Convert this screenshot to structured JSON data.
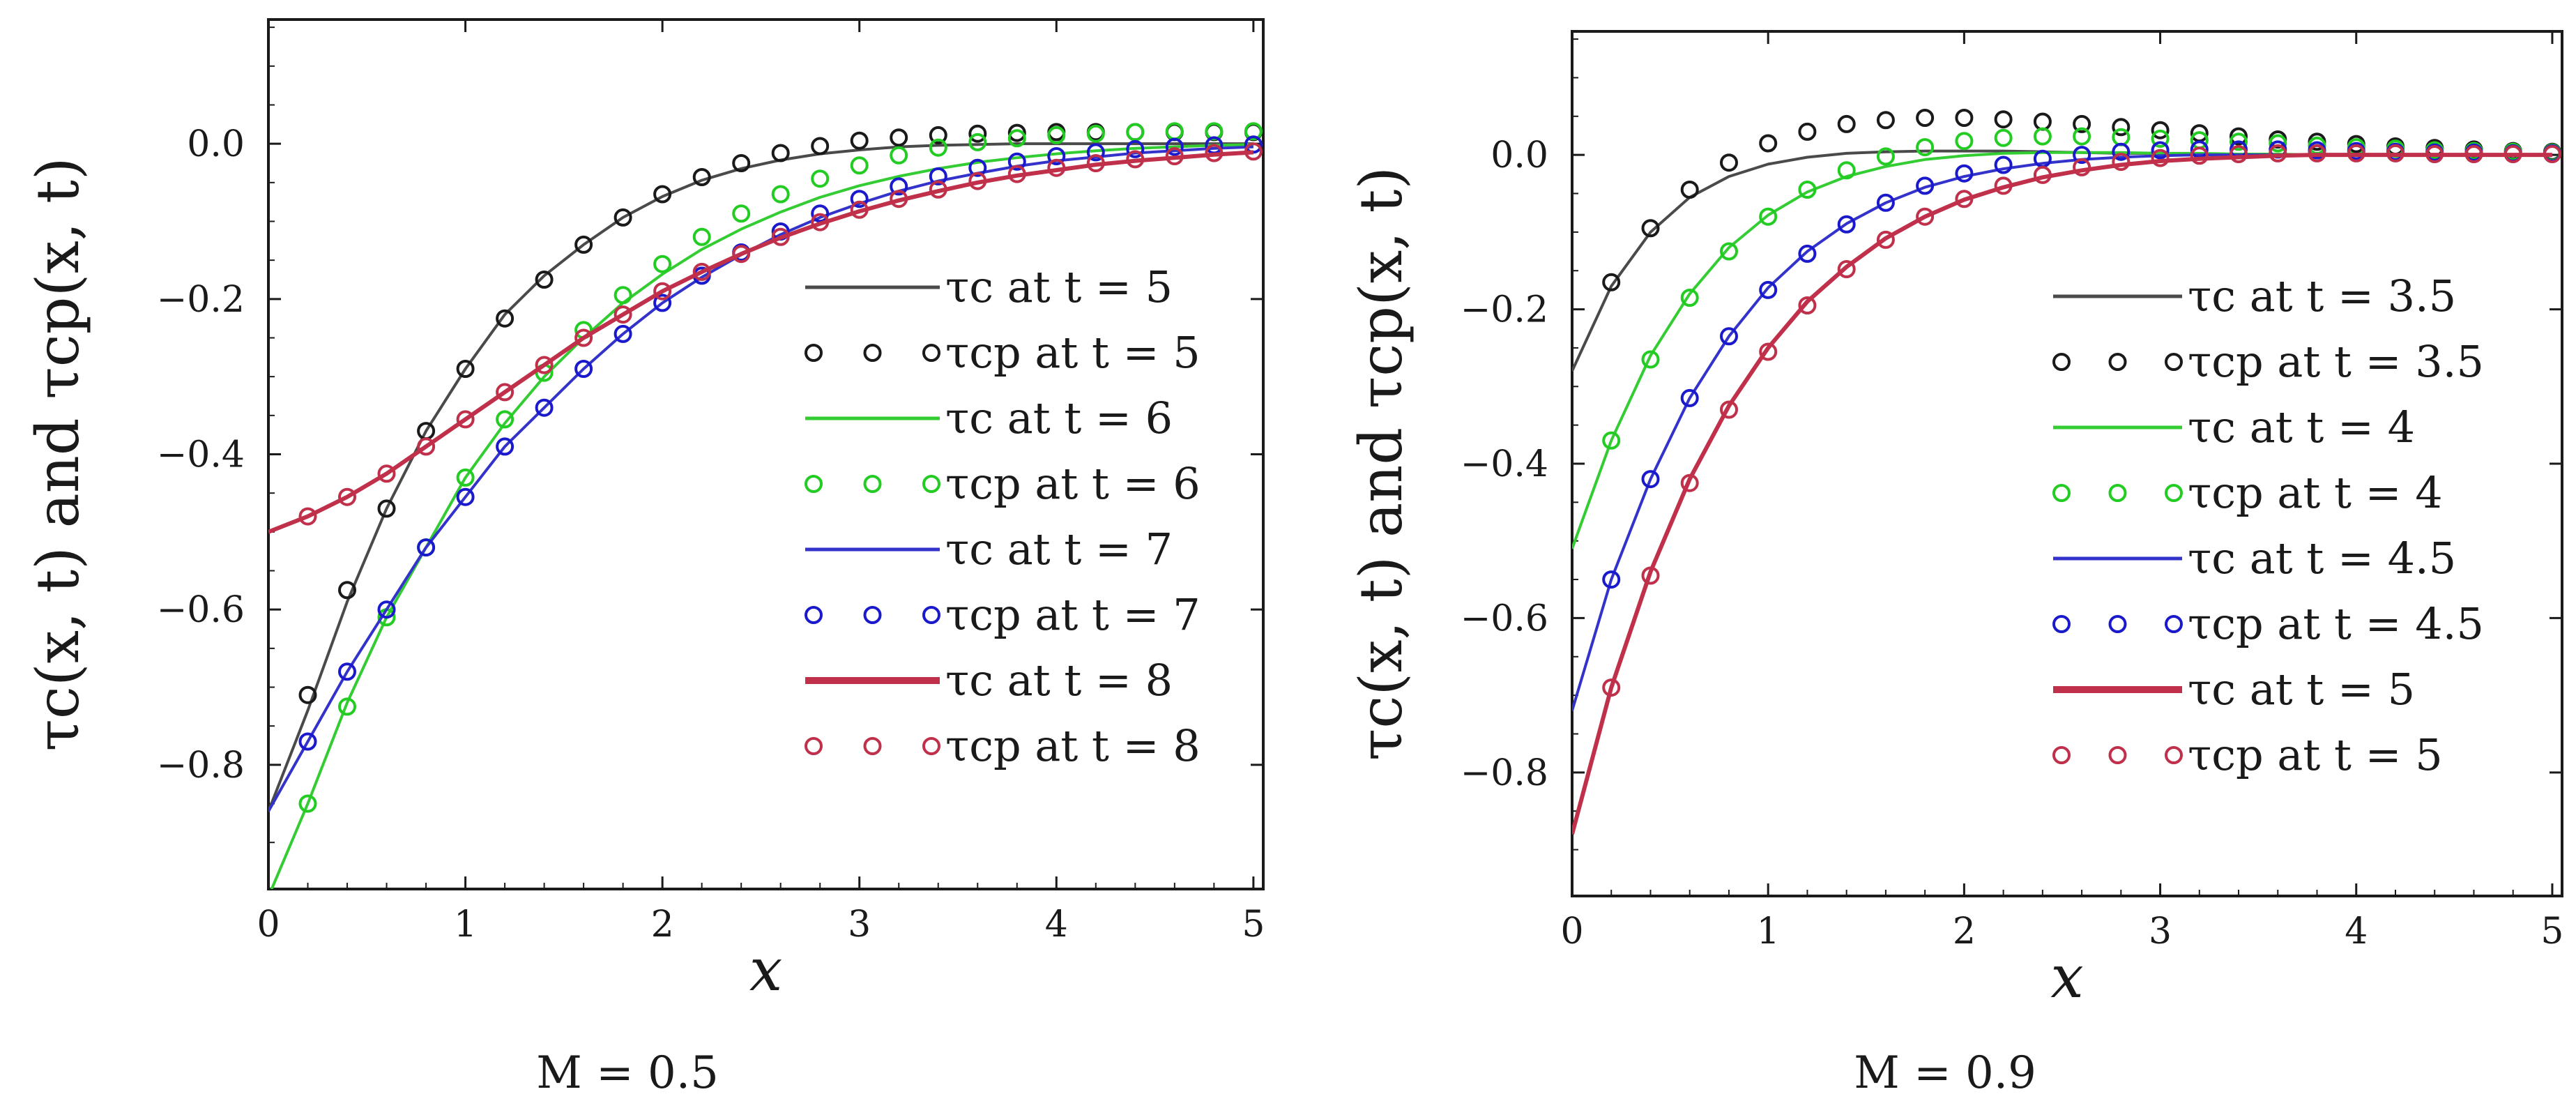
{
  "chart_data": [
    {
      "type": "line",
      "caption": "M = 0.5",
      "xlabel": "x",
      "ylabel": "τc(x, t) and τcp(x, t)",
      "xlim": [
        0,
        5.05
      ],
      "ylim": [
        -0.96,
        0.16
      ],
      "xticks": [
        0,
        1,
        2,
        3,
        4,
        5
      ],
      "yticks": [
        0.0,
        -0.2,
        -0.4,
        -0.6,
        -0.8
      ],
      "ytick_labels": [
        "0.0",
        "−0.2",
        "−0.4",
        "−0.6",
        "−0.8"
      ],
      "legend_position": "right",
      "series": [
        {
          "name": "τc at t = 5",
          "legend": "τc at t = 5",
          "style": "line",
          "color": "#4a4a4a",
          "x": [
            0,
            0.2,
            0.4,
            0.6,
            0.8,
            1.0,
            1.2,
            1.4,
            1.6,
            1.8,
            2.0,
            2.2,
            2.4,
            2.6,
            2.8,
            3.0,
            3.2,
            3.4,
            3.6,
            3.8,
            4.0,
            4.2,
            4.4,
            4.6,
            4.8,
            5.0
          ],
          "y": [
            -0.86,
            -0.73,
            -0.59,
            -0.47,
            -0.37,
            -0.29,
            -0.22,
            -0.17,
            -0.13,
            -0.095,
            -0.068,
            -0.047,
            -0.032,
            -0.021,
            -0.013,
            -0.008,
            -0.004,
            -0.002,
            -0.001,
            0,
            0,
            0,
            0,
            0,
            0,
            0
          ]
        },
        {
          "name": "τcp at t = 5",
          "legend": "τcp at t = 5",
          "style": "markers",
          "color": "#1a1a1a",
          "x": [
            0.2,
            0.4,
            0.6,
            0.8,
            1.0,
            1.2,
            1.4,
            1.6,
            1.8,
            2.0,
            2.2,
            2.4,
            2.6,
            2.8,
            3.0,
            3.2,
            3.4,
            3.6,
            3.8,
            4.0,
            4.2,
            4.4,
            4.6,
            4.8,
            5.0
          ],
          "y": [
            -0.71,
            -0.575,
            -0.47,
            -0.37,
            -0.29,
            -0.225,
            -0.175,
            -0.13,
            -0.095,
            -0.065,
            -0.043,
            -0.025,
            -0.012,
            -0.003,
            0.004,
            0.008,
            0.011,
            0.013,
            0.014,
            0.015,
            0.015,
            0.015,
            0.015,
            0.015,
            0.015
          ]
        },
        {
          "name": "τc at t = 6",
          "legend": "τc at t = 6",
          "style": "line",
          "color": "#33cc33",
          "x": [
            0,
            0.2,
            0.4,
            0.6,
            0.8,
            1.0,
            1.2,
            1.4,
            1.6,
            1.8,
            2.0,
            2.2,
            2.4,
            2.6,
            2.8,
            3.0,
            3.2,
            3.4,
            3.6,
            3.8,
            4.0,
            4.2,
            4.4,
            4.6,
            4.8,
            5.0
          ],
          "y": [
            -0.97,
            -0.85,
            -0.72,
            -0.61,
            -0.52,
            -0.43,
            -0.36,
            -0.3,
            -0.25,
            -0.205,
            -0.168,
            -0.136,
            -0.11,
            -0.088,
            -0.069,
            -0.054,
            -0.042,
            -0.032,
            -0.024,
            -0.018,
            -0.013,
            -0.009,
            -0.006,
            -0.004,
            -0.002,
            -0.001
          ]
        },
        {
          "name": "τcp at t = 6",
          "legend": "τcp at t = 6",
          "style": "markers",
          "color": "#22cc22",
          "x": [
            0.2,
            0.4,
            0.6,
            0.8,
            1.0,
            1.2,
            1.4,
            1.6,
            1.8,
            2.0,
            2.2,
            2.4,
            2.6,
            2.8,
            3.0,
            3.2,
            3.4,
            3.6,
            3.8,
            4.0,
            4.2,
            4.4,
            4.6,
            4.8,
            5.0
          ],
          "y": [
            -0.85,
            -0.725,
            -0.61,
            -0.52,
            -0.43,
            -0.355,
            -0.295,
            -0.24,
            -0.195,
            -0.155,
            -0.12,
            -0.09,
            -0.065,
            -0.045,
            -0.028,
            -0.015,
            -0.005,
            0.002,
            0.007,
            0.011,
            0.013,
            0.015,
            0.016,
            0.016,
            0.016
          ]
        },
        {
          "name": "τc at t = 7",
          "legend": "τc at t = 7",
          "style": "line",
          "color": "#3333cc",
          "x": [
            0,
            0.2,
            0.4,
            0.6,
            0.8,
            1.0,
            1.2,
            1.4,
            1.6,
            1.8,
            2.0,
            2.2,
            2.4,
            2.6,
            2.8,
            3.0,
            3.2,
            3.4,
            3.6,
            3.8,
            4.0,
            4.2,
            4.4,
            4.6,
            4.8,
            5.0
          ],
          "y": [
            -0.86,
            -0.77,
            -0.68,
            -0.6,
            -0.52,
            -0.455,
            -0.39,
            -0.34,
            -0.29,
            -0.245,
            -0.205,
            -0.172,
            -0.143,
            -0.117,
            -0.095,
            -0.077,
            -0.061,
            -0.048,
            -0.038,
            -0.029,
            -0.022,
            -0.017,
            -0.012,
            -0.009,
            -0.006,
            -0.004
          ]
        },
        {
          "name": "τcp at t = 7",
          "legend": "τcp at t = 7",
          "style": "markers",
          "color": "#1a1acc",
          "x": [
            0.2,
            0.4,
            0.6,
            0.8,
            1.0,
            1.2,
            1.4,
            1.6,
            1.8,
            2.0,
            2.2,
            2.4,
            2.6,
            2.8,
            3.0,
            3.2,
            3.4,
            3.6,
            3.8,
            4.0,
            4.2,
            4.4,
            4.6,
            4.8,
            5.0
          ],
          "y": [
            -0.77,
            -0.68,
            -0.6,
            -0.52,
            -0.455,
            -0.39,
            -0.34,
            -0.29,
            -0.245,
            -0.205,
            -0.17,
            -0.14,
            -0.113,
            -0.09,
            -0.071,
            -0.055,
            -0.042,
            -0.031,
            -0.023,
            -0.016,
            -0.011,
            -0.007,
            -0.004,
            -0.002,
            -0.001
          ]
        },
        {
          "name": "τc at t = 8",
          "legend": "τc at t = 8",
          "style": "line",
          "color": "#c0304a",
          "x": [
            0,
            0.2,
            0.4,
            0.6,
            0.8,
            1.0,
            1.2,
            1.4,
            1.6,
            1.8,
            2.0,
            2.2,
            2.4,
            2.6,
            2.8,
            3.0,
            3.2,
            3.4,
            3.6,
            3.8,
            4.0,
            4.2,
            4.4,
            4.6,
            4.8,
            5.0
          ],
          "y": [
            -0.5,
            -0.48,
            -0.455,
            -0.425,
            -0.39,
            -0.355,
            -0.32,
            -0.285,
            -0.25,
            -0.22,
            -0.19,
            -0.165,
            -0.142,
            -0.121,
            -0.103,
            -0.087,
            -0.073,
            -0.061,
            -0.05,
            -0.041,
            -0.034,
            -0.027,
            -0.022,
            -0.018,
            -0.014,
            -0.011
          ]
        },
        {
          "name": "τcp at t = 8",
          "legend": "τcp at t = 8",
          "style": "markers",
          "color": "#c0304a",
          "x": [
            0.2,
            0.4,
            0.6,
            0.8,
            1.0,
            1.2,
            1.4,
            1.6,
            1.8,
            2.0,
            2.2,
            2.4,
            2.6,
            2.8,
            3.0,
            3.2,
            3.4,
            3.6,
            3.8,
            4.0,
            4.2,
            4.4,
            4.6,
            4.8,
            5.0
          ],
          "y": [
            -0.48,
            -0.455,
            -0.425,
            -0.39,
            -0.355,
            -0.32,
            -0.285,
            -0.25,
            -0.22,
            -0.19,
            -0.165,
            -0.142,
            -0.12,
            -0.101,
            -0.085,
            -0.071,
            -0.059,
            -0.048,
            -0.039,
            -0.031,
            -0.025,
            -0.02,
            -0.016,
            -0.012,
            -0.01
          ]
        }
      ]
    },
    {
      "type": "line",
      "caption": "M = 0.9",
      "xlabel": "x",
      "ylabel": "τc(x, t) and τcp(x, t)",
      "xlim": [
        0,
        5.05
      ],
      "ylim": [
        -0.96,
        0.16
      ],
      "xticks": [
        0,
        1,
        2,
        3,
        4,
        5
      ],
      "yticks": [
        0.0,
        -0.2,
        -0.4,
        -0.6,
        -0.8
      ],
      "ytick_labels": [
        "0.0",
        "−0.2",
        "−0.4",
        "−0.6",
        "−0.8"
      ],
      "legend_position": "right",
      "series": [
        {
          "name": "τc at t = 3.5",
          "legend": "τc at t = 3.5",
          "style": "line",
          "color": "#4a4a4a",
          "x": [
            0,
            0.2,
            0.4,
            0.6,
            0.8,
            1.0,
            1.2,
            1.4,
            1.6,
            1.8,
            2.0,
            2.2,
            2.4,
            2.6,
            2.8,
            3.0,
            3.2,
            3.4,
            3.6,
            3.8,
            4.0,
            4.2,
            4.4,
            4.6,
            4.8,
            5.0
          ],
          "y": [
            -0.28,
            -0.17,
            -0.1,
            -0.055,
            -0.028,
            -0.012,
            -0.003,
            0.002,
            0.004,
            0.005,
            0.005,
            0.005,
            0.004,
            0.003,
            0.002,
            0.002,
            0.001,
            0.001,
            0,
            0,
            0,
            0,
            0,
            0,
            0,
            0
          ]
        },
        {
          "name": "τcp at t = 3.5",
          "legend": "τcp at t = 3.5",
          "style": "markers",
          "color": "#1a1a1a",
          "x": [
            0.2,
            0.4,
            0.6,
            0.8,
            1.0,
            1.2,
            1.4,
            1.6,
            1.8,
            2.0,
            2.2,
            2.4,
            2.6,
            2.8,
            3.0,
            3.2,
            3.4,
            3.6,
            3.8,
            4.0,
            4.2,
            4.4,
            4.6,
            4.8,
            5.0
          ],
          "y": [
            -0.165,
            -0.095,
            -0.045,
            -0.01,
            0.015,
            0.03,
            0.04,
            0.045,
            0.048,
            0.048,
            0.046,
            0.043,
            0.04,
            0.036,
            0.032,
            0.028,
            0.024,
            0.02,
            0.017,
            0.014,
            0.011,
            0.009,
            0.007,
            0.005,
            0.004
          ]
        },
        {
          "name": "τc at t = 4",
          "legend": "τc at t = 4",
          "style": "line",
          "color": "#33cc33",
          "x": [
            0,
            0.2,
            0.4,
            0.6,
            0.8,
            1.0,
            1.2,
            1.4,
            1.6,
            1.8,
            2.0,
            2.2,
            2.4,
            2.6,
            2.8,
            3.0,
            3.2,
            3.4,
            3.6,
            3.8,
            4.0,
            4.2,
            4.4,
            4.6,
            4.8,
            5.0
          ],
          "y": [
            -0.51,
            -0.37,
            -0.26,
            -0.18,
            -0.12,
            -0.078,
            -0.048,
            -0.028,
            -0.015,
            -0.006,
            -0.001,
            0.002,
            0.003,
            0.003,
            0.003,
            0.002,
            0.002,
            0.001,
            0.001,
            0,
            0,
            0,
            0,
            0,
            0,
            0
          ]
        },
        {
          "name": "τcp at t = 4",
          "legend": "τcp at t = 4",
          "style": "markers",
          "color": "#22cc22",
          "x": [
            0.2,
            0.4,
            0.6,
            0.8,
            1.0,
            1.2,
            1.4,
            1.6,
            1.8,
            2.0,
            2.2,
            2.4,
            2.6,
            2.8,
            3.0,
            3.2,
            3.4,
            3.6,
            3.8,
            4.0,
            4.2,
            4.4,
            4.6,
            4.8,
            5.0
          ],
          "y": [
            -0.37,
            -0.265,
            -0.185,
            -0.125,
            -0.08,
            -0.045,
            -0.02,
            -0.002,
            0.01,
            0.018,
            0.022,
            0.024,
            0.024,
            0.023,
            0.021,
            0.019,
            0.017,
            0.015,
            0.012,
            0.01,
            0.008,
            0.006,
            0.005,
            0.004,
            0.003
          ]
        },
        {
          "name": "τc at t = 4.5",
          "legend": "τc at t = 4.5",
          "style": "line",
          "color": "#3333cc",
          "x": [
            0,
            0.2,
            0.4,
            0.6,
            0.8,
            1.0,
            1.2,
            1.4,
            1.6,
            1.8,
            2.0,
            2.2,
            2.4,
            2.6,
            2.8,
            3.0,
            3.2,
            3.4,
            3.6,
            3.8,
            4.0,
            4.2,
            4.4,
            4.6,
            4.8,
            5.0
          ],
          "y": [
            -0.72,
            -0.55,
            -0.42,
            -0.315,
            -0.235,
            -0.172,
            -0.125,
            -0.089,
            -0.062,
            -0.042,
            -0.028,
            -0.018,
            -0.011,
            -0.006,
            -0.003,
            -0.001,
            0,
            0,
            0,
            0,
            0,
            0,
            0,
            0,
            0,
            0
          ]
        },
        {
          "name": "τcp at t = 4.5",
          "legend": "τcp at t = 4.5",
          "style": "markers",
          "color": "#1a1acc",
          "x": [
            0.2,
            0.4,
            0.6,
            0.8,
            1.0,
            1.2,
            1.4,
            1.6,
            1.8,
            2.0,
            2.2,
            2.4,
            2.6,
            2.8,
            3.0,
            3.2,
            3.4,
            3.6,
            3.8,
            4.0,
            4.2,
            4.4,
            4.6,
            4.8,
            5.0
          ],
          "y": [
            -0.55,
            -0.42,
            -0.315,
            -0.235,
            -0.175,
            -0.128,
            -0.09,
            -0.062,
            -0.04,
            -0.024,
            -0.013,
            -0.005,
            0,
            0.004,
            0.006,
            0.007,
            0.007,
            0.007,
            0.006,
            0.005,
            0.004,
            0.003,
            0.003,
            0.002,
            0.002
          ]
        },
        {
          "name": "τc at t = 5",
          "legend": "τc at t = 5",
          "style": "line",
          "color": "#c0304a",
          "x": [
            0,
            0.2,
            0.4,
            0.6,
            0.8,
            1.0,
            1.2,
            1.4,
            1.6,
            1.8,
            2.0,
            2.2,
            2.4,
            2.6,
            2.8,
            3.0,
            3.2,
            3.4,
            3.6,
            3.8,
            4.0,
            4.2,
            4.4,
            4.6,
            4.8,
            5.0
          ],
          "y": [
            -0.88,
            -0.69,
            -0.54,
            -0.42,
            -0.325,
            -0.25,
            -0.19,
            -0.145,
            -0.108,
            -0.08,
            -0.058,
            -0.042,
            -0.029,
            -0.02,
            -0.013,
            -0.008,
            -0.005,
            -0.003,
            -0.001,
            0,
            0,
            0,
            0,
            0,
            0,
            0
          ]
        },
        {
          "name": "τcp at t = 5",
          "legend": "τcp at t = 5",
          "style": "markers",
          "color": "#c0304a",
          "x": [
            0.2,
            0.4,
            0.6,
            0.8,
            1.0,
            1.2,
            1.4,
            1.6,
            1.8,
            2.0,
            2.2,
            2.4,
            2.6,
            2.8,
            3.0,
            3.2,
            3.4,
            3.6,
            3.8,
            4.0,
            4.2,
            4.4,
            4.6,
            4.8,
            5.0
          ],
          "y": [
            -0.69,
            -0.545,
            -0.425,
            -0.33,
            -0.255,
            -0.195,
            -0.148,
            -0.11,
            -0.08,
            -0.057,
            -0.04,
            -0.026,
            -0.016,
            -0.009,
            -0.004,
            -0.001,
            0.001,
            0.002,
            0.002,
            0.002,
            0.002,
            0.001,
            0.001,
            0.001,
            0.001
          ]
        }
      ]
    }
  ]
}
